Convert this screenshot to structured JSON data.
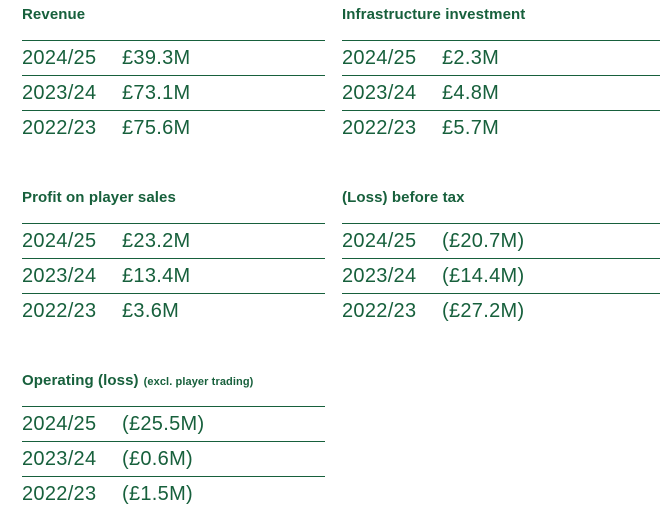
{
  "theme": {
    "text_color": "#17603c",
    "line_color": "#17603c",
    "background": "#ffffff"
  },
  "sections": [
    {
      "title": "Revenue",
      "suffix": "",
      "rows": [
        {
          "year": "2024/25",
          "value": "£39.3M"
        },
        {
          "year": "2023/24",
          "value": "£73.1M"
        },
        {
          "year": "2022/23",
          "value": "£75.6M"
        }
      ]
    },
    {
      "title": "Infrastructure investment",
      "suffix": "",
      "rows": [
        {
          "year": "2024/25",
          "value": "£2.3M"
        },
        {
          "year": "2023/24",
          "value": "£4.8M"
        },
        {
          "year": "2022/23",
          "value": "£5.7M"
        }
      ]
    },
    {
      "title": "Profit on player sales",
      "suffix": "",
      "rows": [
        {
          "year": "2024/25",
          "value": "£23.2M"
        },
        {
          "year": "2023/24",
          "value": "£13.4M"
        },
        {
          "year": "2022/23",
          "value": "£3.6M"
        }
      ]
    },
    {
      "title": "(Loss) before tax",
      "suffix": "",
      "rows": [
        {
          "year": "2024/25",
          "value": "(£20.7M)"
        },
        {
          "year": "2023/24",
          "value": "(£14.4M)"
        },
        {
          "year": "2022/23",
          "value": "(£27.2M)"
        }
      ]
    },
    {
      "title": "Operating (loss)",
      "suffix": "(excl. player trading)",
      "rows": [
        {
          "year": "2024/25",
          "value": "(£25.5M)"
        },
        {
          "year": "2023/24",
          "value": "(£0.6M)"
        },
        {
          "year": "2022/23",
          "value": "(£1.5M)"
        }
      ]
    }
  ]
}
